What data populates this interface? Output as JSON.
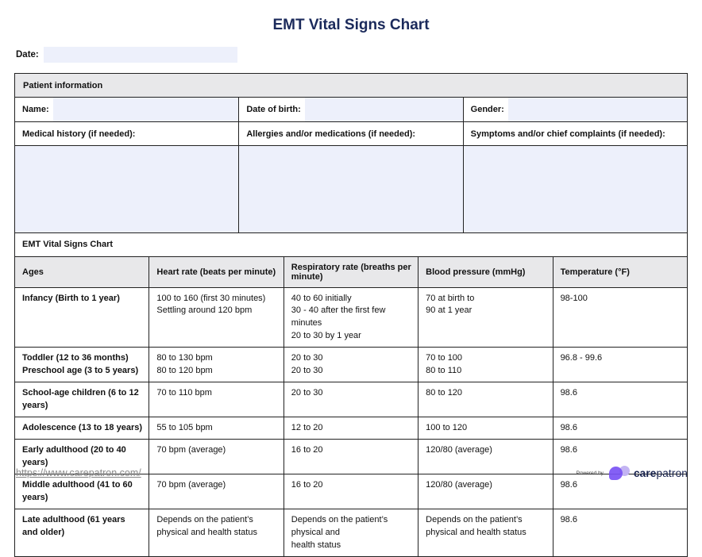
{
  "page": {
    "title": "EMT Vital Signs Chart",
    "date_label": "Date:",
    "date_value": ""
  },
  "patient_info": {
    "header": "Patient information",
    "fields": [
      {
        "label": "Name:",
        "value": ""
      },
      {
        "label": "Date of birth:",
        "value": ""
      },
      {
        "label": "Gender:",
        "value": ""
      }
    ],
    "note_headers": [
      "Medical history (if needed):",
      "Allergies and/or medications (if needed):",
      "Symptoms and/or chief complaints (if needed):"
    ],
    "note_values": [
      "",
      "",
      ""
    ]
  },
  "vitals_table": {
    "header": "EMT Vital Signs Chart",
    "columns": [
      "Ages",
      "Heart rate (beats per minute)",
      "Respiratory rate (breaths per minute)",
      "Blood pressure (mmHg)",
      "Temperature  (°F)"
    ],
    "rows": [
      {
        "age": "Infancy (Birth to 1 year)",
        "heart_rate": "100 to 160 (first 30 minutes)\nSettling around 120 bpm",
        "respiratory_rate": "40 to 60 initially\n30 - 40 after the first few minutes\n20 to 30 by 1 year",
        "blood_pressure": "70 at birth to\n90 at 1 year",
        "temperature": "98-100"
      },
      {
        "age": "Toddler (12 to 36 months)\nPreschool age (3 to 5 years)",
        "heart_rate": "80 to 130 bpm\n80 to 120 bpm",
        "respiratory_rate": "20 to 30\n20 to 30",
        "blood_pressure": "70 to 100\n80 to 110",
        "temperature": "96.8 - 99.6"
      },
      {
        "age": "School-age children (6 to 12 years)",
        "heart_rate": "70 to 110 bpm",
        "respiratory_rate": "20 to 30",
        "blood_pressure": "80 to 120",
        "temperature": "98.6"
      },
      {
        "age": "Adolescence (13 to 18 years)",
        "heart_rate": "55 to 105 bpm",
        "respiratory_rate": "12 to 20",
        "blood_pressure": "100 to 120",
        "temperature": "98.6"
      },
      {
        "age": "Early adulthood (20 to 40 years)",
        "heart_rate": "70 bpm (average)",
        "respiratory_rate": "16 to 20",
        "blood_pressure": "120/80 (average)",
        "temperature": "98.6"
      },
      {
        "age": "Middle adulthood (41 to 60 years)",
        "heart_rate": "70 bpm (average)",
        "respiratory_rate": "16 to 20",
        "blood_pressure": "120/80 (average)",
        "temperature": "98.6"
      },
      {
        "age": "Late adulthood (61 years and older)",
        "heart_rate": "Depends on the patient’s\nphysical and health status",
        "respiratory_rate": "Depends on the patient’s physical and\nhealth status",
        "blood_pressure": "Depends on the patient’s\nphysical and health status",
        "temperature": "98.6"
      }
    ]
  },
  "footer": {
    "link": "https://www.carepatron.com/",
    "powered_by": "Powered by",
    "brand_bold": "care",
    "brand_light": "patron"
  },
  "colors": {
    "title_navy": "#1b2a5b",
    "field_fill": "#edf0fb",
    "header_gray": "#e8e8ea",
    "border": "#222222",
    "brand_purple": "#7a52f4",
    "brand_lavender": "#c3b4f3",
    "brand_navy": "#16214d",
    "link_gray": "#8a8a8a"
  }
}
